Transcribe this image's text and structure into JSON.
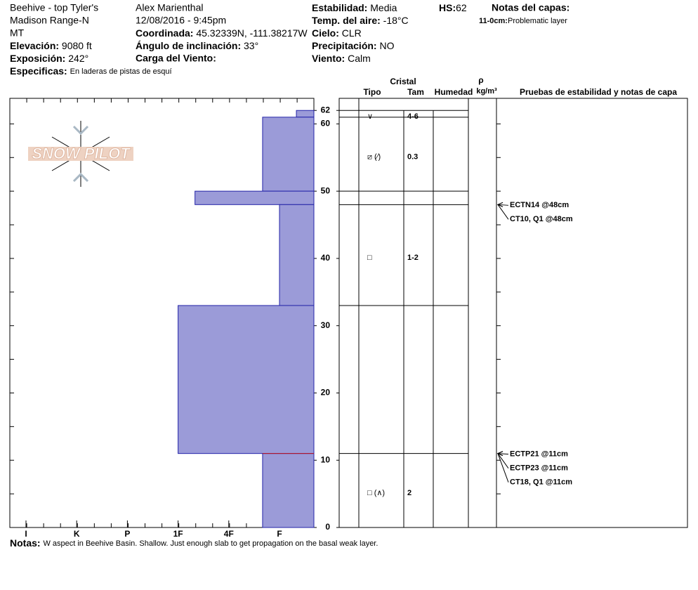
{
  "header": {
    "location": [
      "Beehive - top Tyler's",
      "Madison Range-N",
      "MT"
    ],
    "observer": "Alex Marienthal",
    "datetime": "12/08/2016 - 9:45pm",
    "elevation": {
      "label": "Elevación:",
      "value": "9080 ft"
    },
    "aspect": {
      "label": "Exposición:",
      "value": "242°"
    },
    "specifics": {
      "label": "Especificas:",
      "value": "En laderas de pistas de esquí"
    },
    "coordinates": {
      "label": "Coordinada:",
      "value": "45.32339N, -111.38217W"
    },
    "slope": {
      "label": "Ángulo de inclinación:",
      "value": "33°"
    },
    "wind_loading": {
      "label": "Carga del Viento:"
    },
    "stability": {
      "label": "Estabilidad:",
      "value": "Media"
    },
    "air_temp": {
      "label": "Temp. del aire:",
      "value": "-18°C"
    },
    "sky": {
      "label": "Cielo:",
      "value": "CLR"
    },
    "precipitation": {
      "label": "Precipitación:",
      "value": "NO"
    },
    "wind": {
      "label": "Viento:",
      "value": "Calm"
    },
    "hs": {
      "label": "HS:",
      "value": "62"
    },
    "layer_notes": {
      "title": "Notas del capas:",
      "range": "11-0cm:",
      "text": "Problematic layer"
    }
  },
  "logo": "SNOW PILOT",
  "profile": {
    "ylim": [
      0,
      63.8
    ],
    "yticks": [
      0,
      10,
      20,
      30,
      40,
      50,
      60,
      62
    ],
    "hardness_axis": [
      "I",
      "K",
      "P",
      "1F",
      "4F",
      "F"
    ],
    "fill": "#9b9bd8",
    "stroke": "#2323a8",
    "problem_color": "#c0141e",
    "layers": [
      {
        "top": 62,
        "bottom": 61,
        "hardness": "F-",
        "grain_type": "∨",
        "grain_size": "4-6"
      },
      {
        "top": 61,
        "bottom": 50,
        "hardness": "F+",
        "grain_type": "⧄ (⁄)",
        "grain_size": "0.3"
      },
      {
        "top": 50,
        "bottom": 48,
        "hardness": "1F-"
      },
      {
        "top": 48,
        "bottom": 33,
        "hardness": "F",
        "grain_type": "□",
        "grain_size": "1-2"
      },
      {
        "top": 33,
        "bottom": 11,
        "hardness": "1F"
      },
      {
        "top": 11,
        "bottom": 0,
        "hardness": "F+",
        "grain_type": "□ (∧)",
        "grain_size": "2",
        "problematic": true
      }
    ]
  },
  "table_headers": {
    "crystal": "Cristal",
    "type": "Tipo",
    "size": "Tam",
    "moisture": "Humedad",
    "rho": "ρ",
    "density_unit": "kg/m³",
    "tests": "Pruebas de estabilidad y notas de capa"
  },
  "tests": [
    {
      "text": "ECTN14 @48cm",
      "depth": 48
    },
    {
      "text": "CT10, Q1 @48cm",
      "depth": 48
    },
    {
      "text": "ECTP21 @11cm",
      "depth": 11
    },
    {
      "text": "ECTP23 @11cm",
      "depth": 11
    },
    {
      "text": "CT18, Q1 @11cm",
      "depth": 11
    }
  ],
  "notes": {
    "label": "Notas:",
    "text": "W aspect in Beehive Basin. Shallow. Just enough slab to get propagation on the basal weak layer."
  }
}
